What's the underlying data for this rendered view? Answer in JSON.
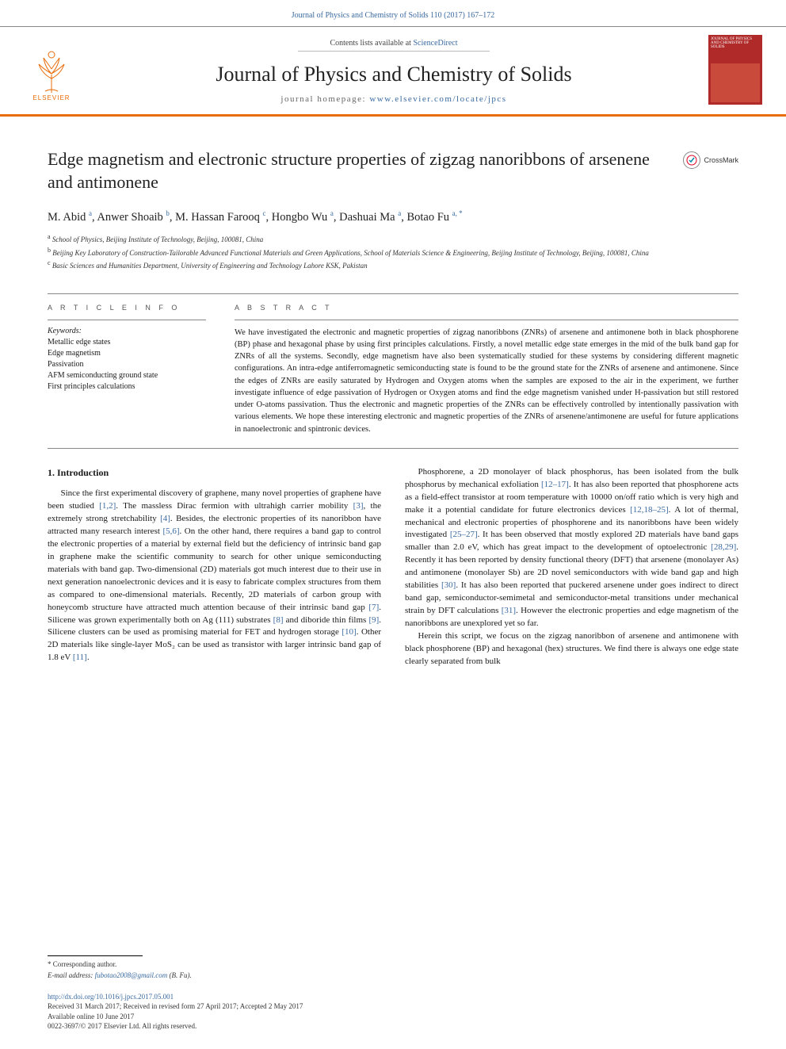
{
  "running_head": {
    "text": "Journal of Physics and Chemistry of Solids 110 (2017) 167–172",
    "color": "#3a6aa0"
  },
  "masthead": {
    "publisher_label": "ELSEVIER",
    "contents_prefix": "Contents lists available at ",
    "contents_link": "ScienceDirect",
    "journal_name": "Journal of Physics and Chemistry of Solids",
    "homepage_prefix": "journal homepage: ",
    "homepage_url": "www.elsevier.com/locate/jpcs",
    "cover_label": "JOURNAL OF PHYSICS AND CHEMISTRY OF SOLIDS",
    "accent_color": "#e86c0a",
    "link_color": "#3a6aa0"
  },
  "article": {
    "title": "Edge magnetism and electronic structure properties of zigzag nanoribbons of arsenene and antimonene",
    "crossmark_label": "CrossMark"
  },
  "authors_html": "M. Abid <sup>a</sup>, Anwer Shoaib <sup>b</sup>, M. Hassan Farooq <sup>c</sup>, Hongbo Wu <sup>a</sup>, Dashuai Ma <sup>a</sup>, Botao Fu <sup>a, *</sup>",
  "affiliations": [
    {
      "sup": "a",
      "text": "School of Physics, Beijing Institute of Technology, Beijing, 100081, China"
    },
    {
      "sup": "b",
      "text": "Beijing Key Laboratory of Construction-Tailorable Advanced Functional Materials and Green Applications, School of Materials Science & Engineering, Beijing Institute of Technology, Beijing, 100081, China"
    },
    {
      "sup": "c",
      "text": "Basic Sciences and Humanities Department, University of Engineering and Technology Lahore KSK, Pakistan"
    }
  ],
  "article_info": {
    "heading": "A R T I C L E  I N F O",
    "keywords_label": "Keywords:",
    "keywords": [
      "Metallic edge states",
      "Edge magnetism",
      "Passivation",
      "AFM semiconducting ground state",
      "First principles calculations"
    ]
  },
  "abstract": {
    "heading": "A B S T R A C T",
    "text": "We have investigated the electronic and magnetic properties of zigzag nanoribbons (ZNRs) of arsenene and antimonene both in black phosphorene (BP) phase and hexagonal phase by using first principles calculations. Firstly, a novel metallic edge state emerges in the mid of the bulk band gap for ZNRs of all the systems. Secondly, edge magnetism have also been systematically studied for these systems by considering different magnetic configurations. An intra-edge antiferromagnetic semiconducting state is found to be the ground state for the ZNRs of arsenene and antimonene. Since the edges of ZNRs are easily saturated by Hydrogen and Oxygen atoms when the samples are exposed to the air in the experiment, we further investigate influence of edge passivation of Hydrogen or Oxygen atoms and find the edge magnetism vanished under H-passivation but still restored under O-atoms passivation. Thus the electronic and magnetic properties of the ZNRs can be effectively controlled by intentionally passivation with various elements. We hope these interesting electronic and magnetic properties of the ZNRs of arsenene/antimonene are useful for future applications in nanoelectronic and spintronic devices."
  },
  "body": {
    "section_number": "1.",
    "section_title": "Introduction",
    "col1_p1_a": "Since the first experimental discovery of graphene, many novel properties of graphene have been studied ",
    "ref_1_2": "[1,2]",
    "col1_p1_b": ". The massless Dirac fermion with ultrahigh carrier mobility ",
    "ref_3": "[3]",
    "col1_p1_c": ", the extremely strong stretchability ",
    "ref_4": "[4]",
    "col1_p1_d": ". Besides, the electronic properties of its nanoribbon have attracted many research interest ",
    "ref_5_6": "[5,6]",
    "col1_p1_e": ". On the other hand, there requires a band gap to control the electronic properties of a material by external field but the deficiency of intrinsic band gap in graphene make the scientific community to search for other unique semiconducting materials with band gap. Two-dimensional (2D) materials got much interest due to their use in next generation nanoelectronic devices and it is easy to fabricate complex structures from them as compared to one-dimensional materials. Recently, 2D materials of carbon group with honeycomb structure have attracted much attention because of their intrinsic band gap ",
    "ref_7": "[7]",
    "col1_p1_f": ". Silicene was grown experimentally both on Ag (111) substrates ",
    "ref_8": "[8]",
    "col1_p1_g": " and diboride thin films ",
    "ref_9": "[9]",
    "col1_p1_h": ". Silicene clusters can be used as promising material for FET and hydrogen storage ",
    "ref_10": "[10]",
    "col1_p1_i": ". Other 2D materials like single-layer MoS₂ can be used as transistor with larger intrinsic band gap of 1.8 eV ",
    "ref_11": "[11]",
    "col1_p1_j": ".",
    "col2_p1_a": "Phosphorene, a 2D monolayer of black phosphorus, has been isolated from the bulk phosphorus by mechanical exfoliation ",
    "ref_12_17": "[12–17]",
    "col2_p1_b": ". It has also been reported that phosphorene acts as a field-effect transistor at room temperature with 10000 on/off ratio which is very high and make it a potential candidate for future electronics devices ",
    "ref_12_18_25": "[12,18–25]",
    "col2_p1_c": ". A lot of thermal, mechanical and electronic properties of phosphorene and its nanoribbons have been widely investigated ",
    "ref_25_27": "[25–27]",
    "col2_p1_d": ". It has been observed that mostly explored 2D materials have band gaps smaller than 2.0 eV, which has great impact to the development of optoelectronic ",
    "ref_28_29": "[28,29]",
    "col2_p1_e": ". Recently it has been reported by density functional theory (DFT) that arsenene (monolayer As) and antimonene (monolayer Sb) are 2D novel semiconductors with wide band gap and high stabilities ",
    "ref_30": "[30]",
    "col2_p1_f": ". It has also been reported that puckered arsenene under goes indirect to direct band gap, semiconductor-semimetal and semiconductor-metal transitions under mechanical strain by DFT calculations ",
    "ref_31": "[31]",
    "col2_p1_g": ". However the electronic properties and edge magnetism of the nanoribbons are unexplored yet so far.",
    "col2_p2": "Herein this script, we focus on the zigzag nanoribbon of arsenene and antimonene with black phosphorene (BP) and hexagonal (hex) structures. We find there is always one edge state clearly separated from bulk"
  },
  "footer": {
    "corr_label": "* Corresponding author.",
    "email_label": "E-mail address:",
    "email": "fubotao2008@gmail.com",
    "email_name": "(B. Fu).",
    "doi_url": "http://dx.doi.org/10.1016/j.jpcs.2017.05.001",
    "history": "Received 31 March 2017; Received in revised form 27 April 2017; Accepted 2 May 2017",
    "online": "Available online 10 June 2017",
    "copyright": "0022-3697/© 2017 Elsevier Ltd. All rights reserved."
  }
}
